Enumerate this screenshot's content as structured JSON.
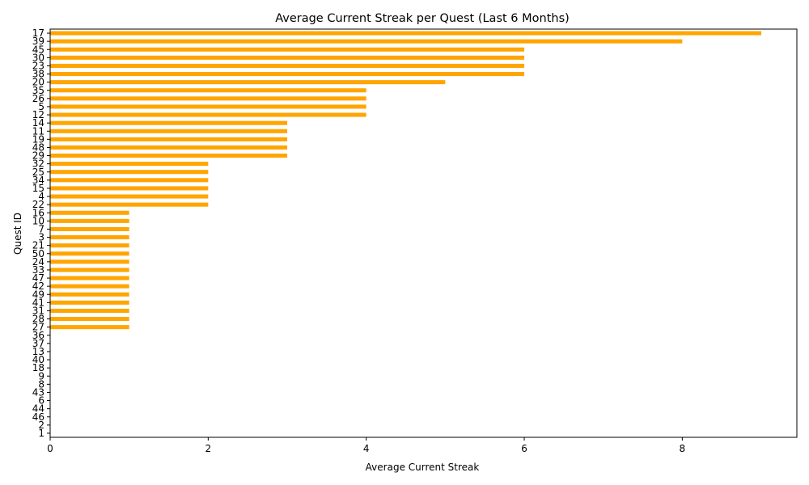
{
  "chart_data": {
    "type": "bar",
    "orientation": "horizontal",
    "title": "Average Current Streak per Quest (Last 6 Months)",
    "xlabel": "Average Current Streak",
    "ylabel": "Quest ID",
    "xlim": [
      0,
      9.45
    ],
    "xticks": [
      0,
      2,
      4,
      6,
      8
    ],
    "grid": false,
    "legend": "none",
    "bar_color": "#FFA500",
    "categories": [
      "17",
      "39",
      "45",
      "30",
      "23",
      "38",
      "20",
      "35",
      "26",
      "5",
      "12",
      "14",
      "11",
      "19",
      "48",
      "29",
      "32",
      "25",
      "34",
      "15",
      "4",
      "22",
      "16",
      "10",
      "7",
      "3",
      "21",
      "50",
      "24",
      "33",
      "47",
      "42",
      "49",
      "41",
      "31",
      "28",
      "27",
      "36",
      "37",
      "13",
      "40",
      "18",
      "9",
      "8",
      "43",
      "6",
      "44",
      "46",
      "2",
      "1"
    ],
    "values": [
      9,
      8,
      6,
      6,
      6,
      6,
      5,
      4,
      4,
      4,
      4,
      3,
      3,
      3,
      3,
      3,
      2,
      2,
      2,
      2,
      2,
      2,
      1,
      1,
      1,
      1,
      1,
      1,
      1,
      1,
      1,
      1,
      1,
      1,
      1,
      1,
      1,
      0,
      0,
      0,
      0,
      0,
      0,
      0,
      0,
      0,
      0,
      0,
      0,
      0
    ]
  }
}
